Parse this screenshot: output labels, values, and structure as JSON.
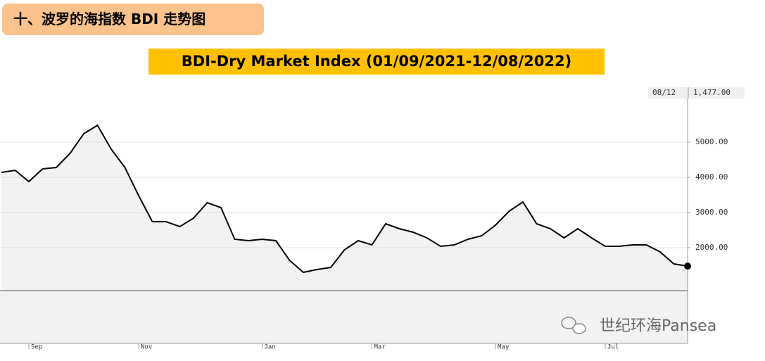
{
  "header": {
    "title": "十、波罗的海指数 BDI 走势图"
  },
  "chart_data": {
    "type": "line",
    "title": "BDI-Dry Market Index (01/09/2021-12/08/2022)",
    "categories": [
      null,
      null,
      "Sep",
      null,
      null,
      null,
      null,
      null,
      null,
      null,
      "Nov",
      null,
      null,
      null,
      null,
      null,
      null,
      null,
      null,
      "Jan",
      null,
      null,
      null,
      null,
      null,
      null,
      null,
      "Mar",
      null,
      null,
      null,
      null,
      null,
      null,
      null,
      null,
      "May",
      null,
      null,
      null,
      null,
      null,
      null,
      null,
      "Jul",
      null,
      null,
      null,
      null,
      null,
      null
    ],
    "values": [
      4140,
      4200,
      3880,
      4240,
      4280,
      4680,
      5240,
      5480,
      4800,
      4280,
      3480,
      2740,
      2740,
      2600,
      2840,
      3280,
      3140,
      2240,
      2200,
      2240,
      2200,
      1640,
      1300,
      1380,
      1440,
      1940,
      2200,
      2080,
      2680,
      2540,
      2440,
      2280,
      2040,
      2080,
      2240,
      2340,
      2640,
      3040,
      3300,
      2680,
      2540,
      2280,
      2540,
      2280,
      2040,
      2040,
      2080,
      2080,
      1880,
      1540,
      1477
    ],
    "color": "#000000",
    "ylim": [
      780,
      6500
    ],
    "yticks": [
      {
        "value": 2000,
        "label": "2000.00"
      },
      {
        "value": 3000,
        "label": "3000.00"
      },
      {
        "value": 4000,
        "label": "4000.00"
      },
      {
        "value": 5000,
        "label": "5000.00"
      }
    ],
    "grid": true,
    "last_date": "08/12",
    "last_value_label": "1,477.00"
  },
  "watermark": "世纪环海Pansea"
}
